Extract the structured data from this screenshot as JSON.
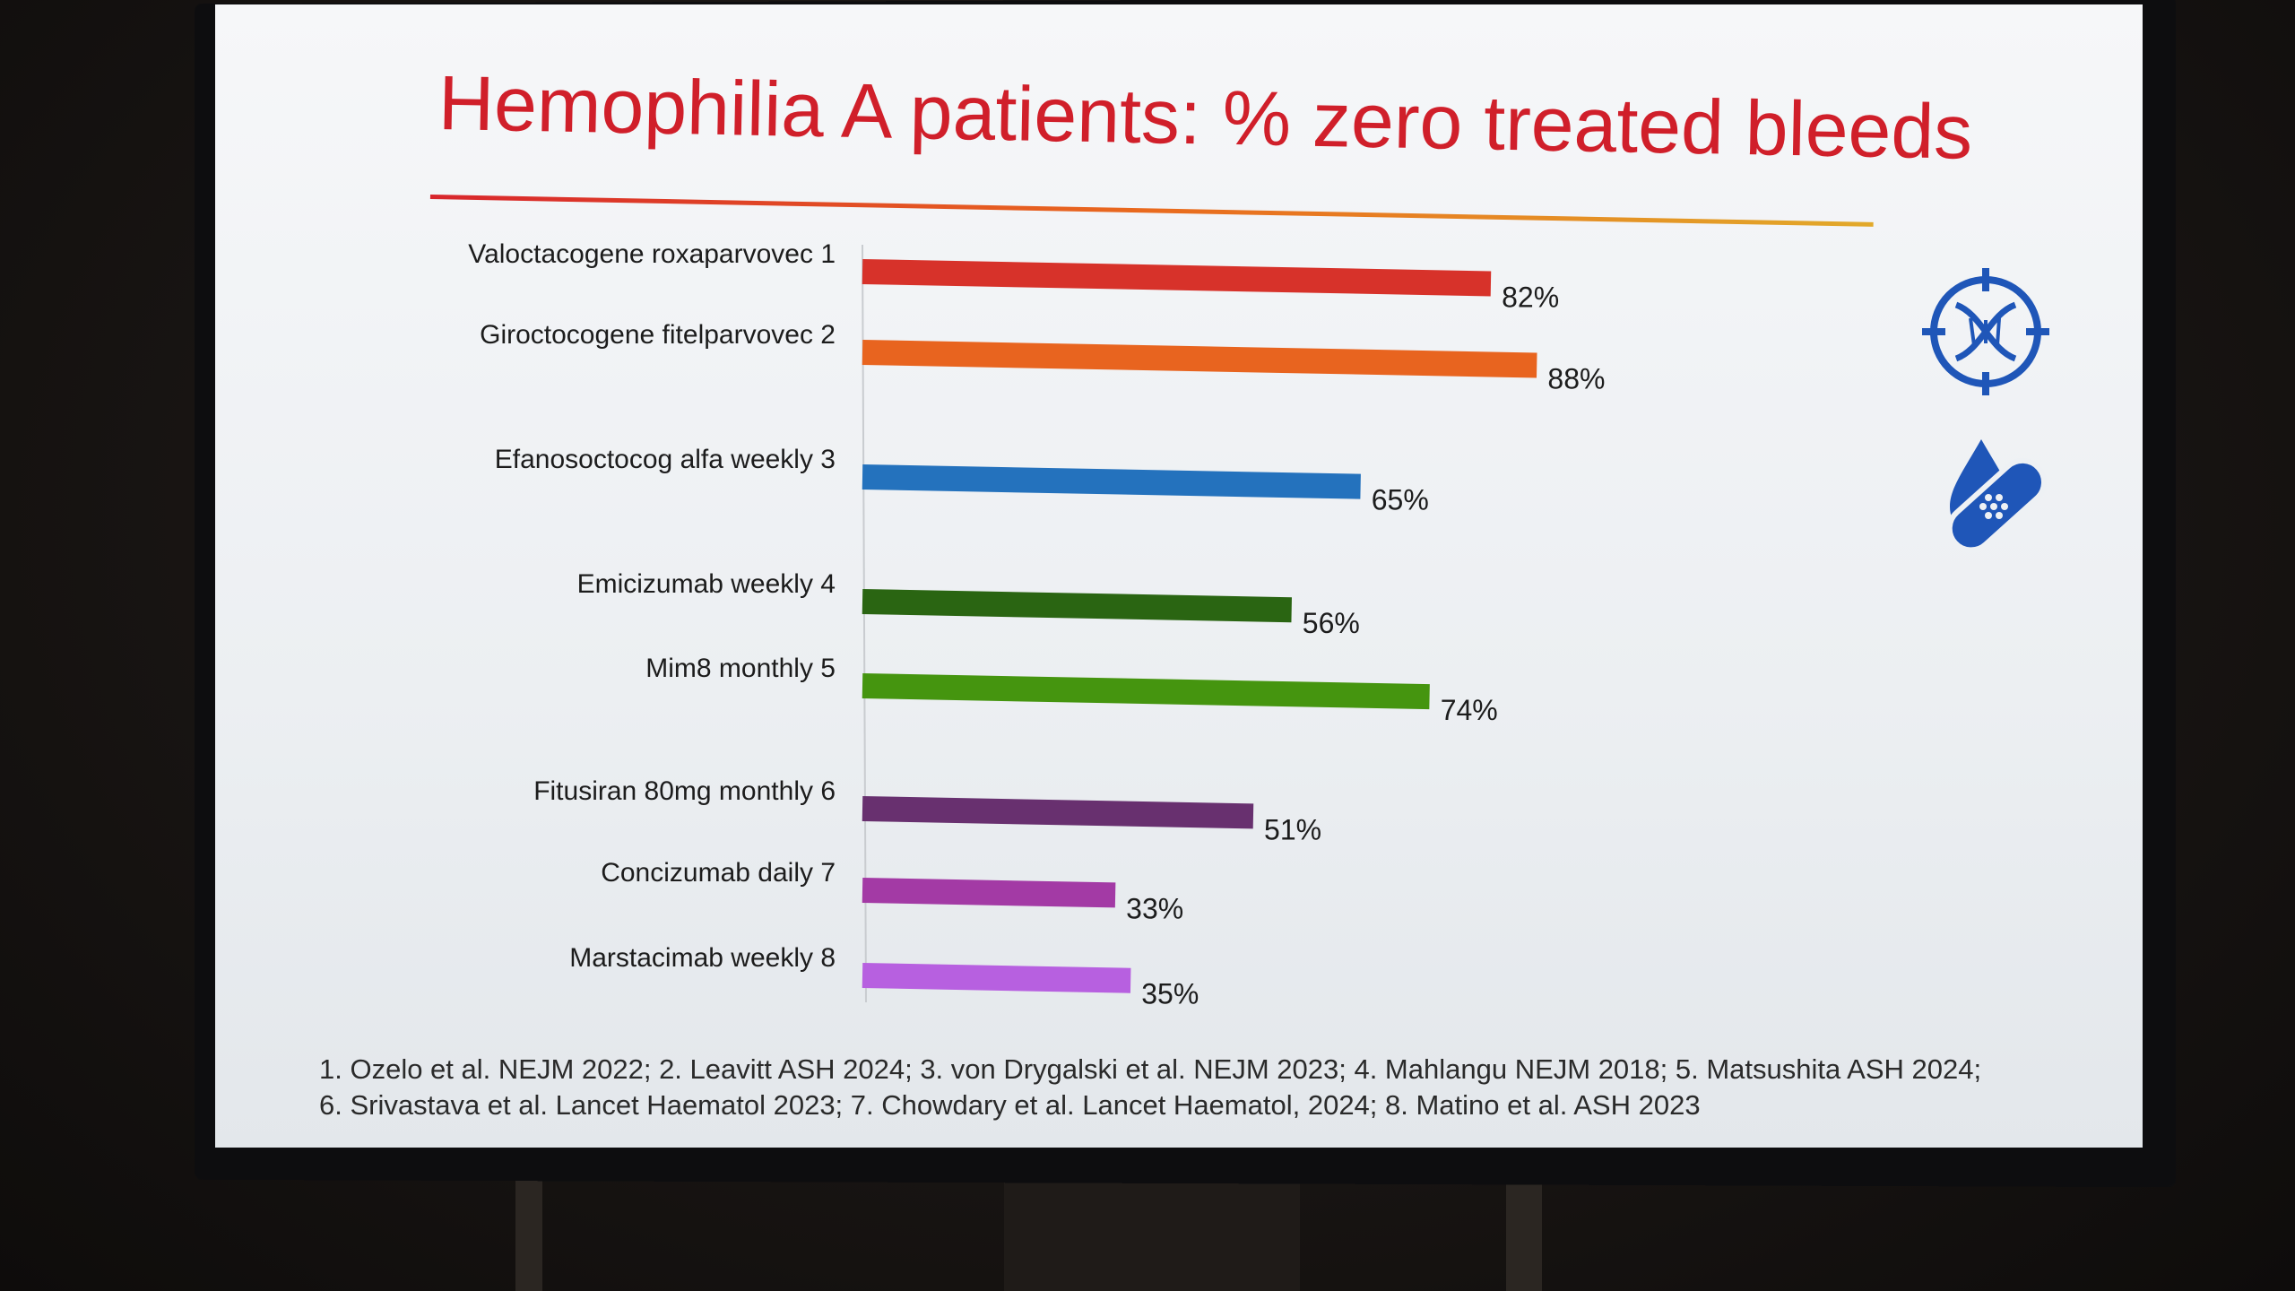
{
  "chart_data": {
    "type": "bar",
    "orientation": "horizontal",
    "title": "Hemophilia A patients: % zero treated bleeds",
    "categories": [
      "Valoctacogene roxaparvovec 1",
      "Giroctocogene fitelparvovec 2",
      "Efanosoctocog alfa weekly 3",
      "Emicizumab weekly 4",
      "Mim8 monthly 5",
      "Fitusiran 80mg monthly 6",
      "Concizumab daily 7",
      "Marstacimab weekly 8"
    ],
    "values": [
      82,
      88,
      65,
      56,
      74,
      51,
      33,
      35
    ],
    "value_labels": [
      "82%",
      "88%",
      "65%",
      "56%",
      "74%",
      "51%",
      "33%",
      "35%"
    ],
    "colors": [
      "#d7322a",
      "#e8641f",
      "#2472bd",
      "#2a6512",
      "#45950f",
      "#68306f",
      "#a33aa5",
      "#b760e0"
    ],
    "xlim": [
      0,
      100
    ],
    "grid": false,
    "legend": "none"
  },
  "icons": {
    "gene_icon": "dna-target-icon",
    "bandage_icon": "bandage-drop-icon",
    "icon_color": "#1f56b8"
  },
  "references": [
    "1. Ozelo et al. NEJM 2022; 2. Leavitt ASH 2024; 3. von Drygalski et al. NEJM 2023; 4. Mahlangu NEJM 2018; 5. Matsushita ASH 2024;",
    "6. Srivastava et al. Lancet Haematol 2023; 7. Chowdary et al. Lancet Haematol, 2024; 8. Matino et al. ASH 2023"
  ]
}
